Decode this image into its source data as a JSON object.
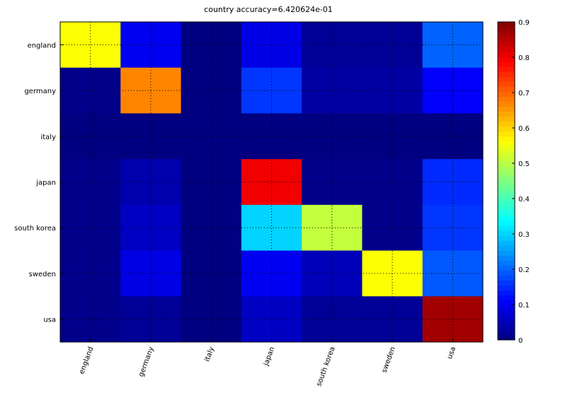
{
  "chart_data": {
    "type": "heatmap",
    "title": "country accuracy=6.420624e-01",
    "row_labels": [
      "england",
      "germany",
      "italy",
      "japan",
      "south korea",
      "sweden",
      "usa"
    ],
    "col_labels": [
      "england",
      "germany",
      "italy",
      "japan",
      "south korea",
      "sweden",
      "usa"
    ],
    "values": [
      [
        0.56,
        0.1,
        0.0,
        0.09,
        0.02,
        0.02,
        0.2
      ],
      [
        0.01,
        0.67,
        0.0,
        0.16,
        0.03,
        0.03,
        0.11
      ],
      [
        0.0,
        0.0,
        0.0,
        0.0,
        0.0,
        0.0,
        0.0
      ],
      [
        0.01,
        0.04,
        0.0,
        0.8,
        0.01,
        0.01,
        0.15
      ],
      [
        0.01,
        0.06,
        0.0,
        0.3,
        0.51,
        0.01,
        0.16
      ],
      [
        0.01,
        0.09,
        0.0,
        0.1,
        0.05,
        0.56,
        0.19
      ],
      [
        0.01,
        0.02,
        0.0,
        0.06,
        0.02,
        0.02,
        0.87
      ]
    ],
    "colorbar": {
      "range": [
        0,
        0.9
      ],
      "ticks": [
        0,
        0.1,
        0.2,
        0.3,
        0.4,
        0.5,
        0.6,
        0.7,
        0.8,
        0.9
      ]
    },
    "colormap": "jet",
    "grid": "dotted"
  }
}
